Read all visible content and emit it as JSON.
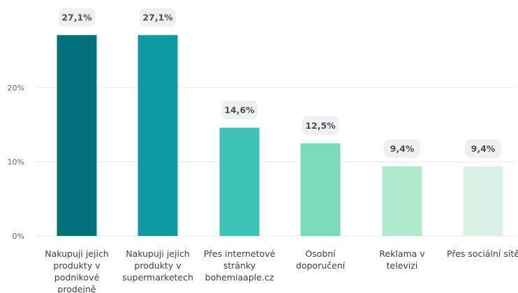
{
  "chart_data": {
    "type": "bar",
    "categories": [
      [
        "Nakupuji jejich",
        "produkty v",
        "podnikové",
        "prodejně"
      ],
      [
        "Nakupuji jejich",
        "produkty v",
        "supermarketech"
      ],
      [
        "Přes internetové",
        "stránky",
        "bohemiaaple.cz"
      ],
      [
        "Osobní",
        "doporučení"
      ],
      [
        "Reklama v",
        "televizi"
      ],
      [
        "Přes sociální sítě"
      ]
    ],
    "values": [
      27.1,
      27.1,
      14.6,
      12.5,
      9.4,
      9.4
    ],
    "data_labels": [
      "27,1%",
      "27,1%",
      "14,6%",
      "12,5%",
      "9,4%",
      "9,4%"
    ],
    "bar_colors": [
      "#00707b",
      "#0f9aa3",
      "#3fc3b7",
      "#7ddcb7",
      "#aeeacd",
      "#daf1e5"
    ],
    "yticks": [
      0,
      10,
      20
    ],
    "ytick_labels": [
      "0%",
      "10%",
      "20%"
    ],
    "ylim": [
      0,
      30
    ],
    "grid": true,
    "gridline_color": "#e8ebee",
    "label_bg_color": "#eef0f1"
  }
}
